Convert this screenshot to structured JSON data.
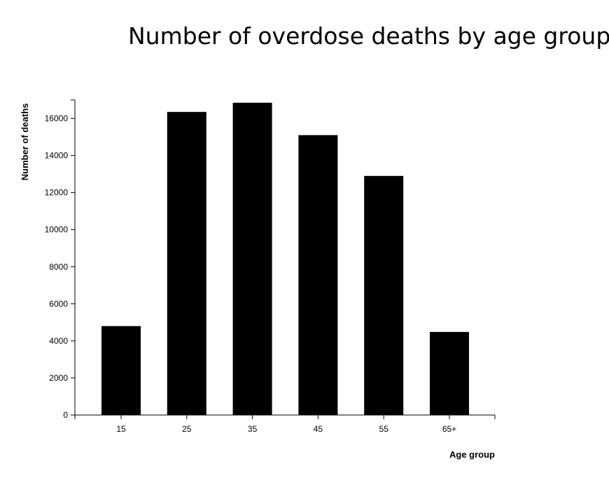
{
  "chart_data": {
    "type": "bar",
    "title": "Number of overdose deaths by age group",
    "xlabel": "Age group",
    "ylabel": "Number of deaths",
    "categories": [
      "15",
      "25",
      "35",
      "45",
      "55",
      "65+"
    ],
    "values": [
      4800,
      16350,
      16850,
      15100,
      12900,
      4480
    ],
    "ylim": [
      0,
      17000
    ],
    "yticks": [
      0,
      2000,
      4000,
      6000,
      8000,
      10000,
      12000,
      14000,
      16000
    ],
    "bar_color": "#000000",
    "grid": false,
    "legend": "none"
  }
}
